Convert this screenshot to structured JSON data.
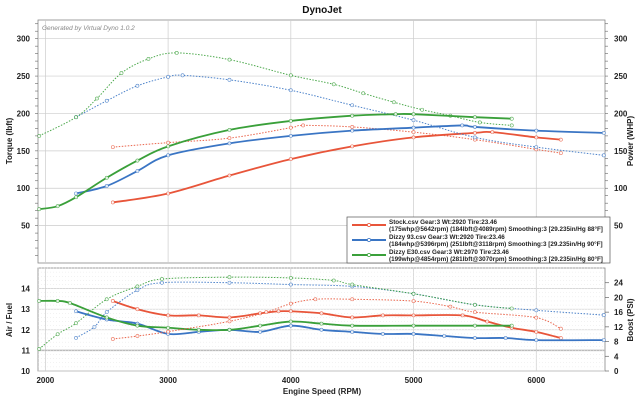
{
  "chart_data": [
    {
      "type": "line",
      "title": "DynoJet",
      "watermark": "Generated by Virtual Dyno 1.0.2",
      "ylabel": "Torque (lbft)",
      "ylabel_right": "Power (WHP)",
      "xlim": [
        1940,
        6560
      ],
      "ylim": [
        0,
        325
      ],
      "yticks": [
        50,
        100,
        150,
        200,
        250,
        300
      ],
      "grid": true,
      "legend": {
        "placement": "bottom-right",
        "entries": [
          {
            "line1": "Stock.csv Gear:3 Wt:2920 Tire:23.46",
            "line2": "(175whp@5642rpm) (184lbft@4089rpm) Smoothing:3 [29.235in/Hg 88°F]",
            "color": "#e8553a"
          },
          {
            "line1": "Dizzy 93.csv Gear:3 Wt:2920 Tire:23.46",
            "line2": "(184whp@5396rpm) (251lbft@3118rpm) Smoothing:3 [29.235in/Hg 90°F]",
            "color": "#3a75c4"
          },
          {
            "line1": "Dizzy E30.csv Gear:3 Wt:2970 Tire:23.46",
            "line2": "(199whp@4854rpm) (281lbft@3070rpm) Smoothing:3 [29.235in/Hg 80°F]",
            "color": "#3aa03a"
          }
        ]
      },
      "series": [
        {
          "file": "Stock",
          "measure": "torque",
          "style": "dotted",
          "color": "#e8553a",
          "x": [
            2550,
            3000,
            3500,
            4000,
            4100,
            4500,
            5000,
            5500,
            6000,
            6200
          ],
          "y": [
            155,
            161,
            167,
            181,
            184,
            182,
            175,
            165,
            152,
            147
          ]
        },
        {
          "file": "Stock",
          "measure": "power",
          "style": "solid",
          "color": "#e8553a",
          "x": [
            2550,
            3000,
            3500,
            4000,
            4500,
            5000,
            5500,
            5642,
            6000,
            6200
          ],
          "y": [
            81,
            93,
            117,
            139,
            156,
            168,
            174,
            175,
            168,
            165
          ]
        },
        {
          "file": "Dizzy 93",
          "measure": "torque",
          "style": "dotted",
          "color": "#3a75c4",
          "x": [
            2250,
            2500,
            2750,
            3000,
            3118,
            3500,
            4000,
            4500,
            5000,
            5500,
            6000,
            6550
          ],
          "y": [
            195,
            217,
            237,
            249,
            251,
            245,
            231,
            211,
            191,
            168,
            155,
            144
          ]
        },
        {
          "file": "Dizzy 93",
          "measure": "power",
          "style": "solid",
          "color": "#3a75c4",
          "x": [
            2250,
            2500,
            2750,
            3000,
            3500,
            4000,
            4500,
            5000,
            5396,
            5500,
            6000,
            6550
          ],
          "y": [
            93,
            103,
            123,
            144,
            160,
            170,
            177,
            181,
            184,
            182,
            177,
            174
          ]
        },
        {
          "file": "Dizzy E30",
          "measure": "torque",
          "style": "dotted",
          "color": "#3aa03a",
          "x": [
            1950,
            2250,
            2420,
            2620,
            2840,
            3070,
            3500,
            4000,
            4350,
            4590,
            4840,
            5070,
            5300,
            5540,
            5800
          ],
          "y": [
            170,
            195,
            220,
            254,
            273,
            281,
            272,
            251,
            239,
            227,
            215,
            205,
            197,
            188,
            184
          ]
        },
        {
          "file": "Dizzy E30",
          "measure": "power",
          "style": "solid",
          "color": "#3aa03a",
          "x": [
            1950,
            2100,
            2250,
            2500,
            2750,
            3000,
            3500,
            4000,
            4500,
            4854,
            5000,
            5500,
            5800
          ],
          "y": [
            72,
            76,
            88,
            114,
            137,
            156,
            178,
            190,
            197,
            199,
            199,
            195,
            193
          ]
        }
      ]
    },
    {
      "type": "line",
      "xlabel": "Engine Speed (RPM)",
      "ylabel": "Air / Fuel",
      "ylabel_right": "Boost (PSI)",
      "xlim": [
        1940,
        6560
      ],
      "xticks": [
        2000,
        3000,
        4000,
        5000,
        6000
      ],
      "ylim": [
        10,
        15
      ],
      "yticks": [
        10,
        11,
        12,
        13,
        14
      ],
      "ylim_right": [
        0,
        28
      ],
      "yticks_right": [
        0,
        4,
        8,
        12,
        16,
        20,
        24
      ],
      "grid": true,
      "series": [
        {
          "file": "Stock",
          "measure": "air_fuel",
          "style": "solid",
          "color": "#e8553a",
          "x": [
            2550,
            2750,
            3000,
            3250,
            3500,
            3750,
            3900,
            4000,
            4250,
            4500,
            4750,
            5000,
            5400,
            5600,
            5800,
            6000,
            6200
          ],
          "y": [
            13.4,
            13.0,
            12.7,
            12.7,
            12.6,
            12.8,
            12.9,
            12.9,
            12.8,
            12.6,
            12.7,
            12.7,
            12.7,
            12.4,
            12.1,
            11.9,
            11.6
          ]
        },
        {
          "file": "Dizzy 93",
          "measure": "air_fuel",
          "style": "solid",
          "color": "#3a75c4",
          "x": [
            2250,
            2500,
            2750,
            3000,
            3250,
            3500,
            3750,
            4000,
            4250,
            4500,
            4750,
            5000,
            5250,
            5500,
            5750,
            6000,
            6550
          ],
          "y": [
            12.9,
            12.5,
            12.3,
            11.8,
            11.9,
            12.0,
            11.9,
            12.2,
            12.0,
            11.9,
            11.8,
            11.8,
            11.7,
            11.6,
            11.6,
            11.5,
            11.5
          ]
        },
        {
          "file": "Dizzy E30",
          "measure": "air_fuel",
          "style": "solid",
          "color": "#3aa03a",
          "x": [
            1950,
            2100,
            2200,
            2500,
            2750,
            3000,
            3250,
            3500,
            3750,
            4000,
            4250,
            4500,
            5000,
            5500,
            5800
          ],
          "y": [
            13.4,
            13.4,
            13.3,
            12.6,
            12.2,
            12.1,
            12.0,
            12.0,
            12.2,
            12.4,
            12.3,
            12.2,
            12.2,
            12.2,
            12.2
          ]
        },
        {
          "file": "Stock",
          "measure": "boost",
          "style": "dotted",
          "color": "#e8553a",
          "x": [
            2550,
            2750,
            3000,
            3500,
            3800,
            4000,
            4200,
            4500,
            5000,
            5300,
            5500,
            6000,
            6200
          ],
          "y": [
            8.7,
            9.5,
            10.7,
            13.5,
            16,
            18.3,
            19.5,
            19.5,
            19,
            17.5,
            16,
            14.5,
            11.5
          ]
        },
        {
          "file": "Dizzy 93",
          "measure": "boost",
          "style": "dotted",
          "color": "#3a75c4",
          "x": [
            2250,
            2400,
            2500,
            2750,
            2950,
            3500,
            4000,
            4500,
            5000,
            5500,
            6000,
            6550
          ],
          "y": [
            9,
            12,
            16,
            22,
            24,
            24,
            23.5,
            23,
            21,
            18,
            16.5,
            15.2
          ]
        },
        {
          "file": "Dizzy E30",
          "measure": "boost",
          "style": "dotted",
          "color": "#3aa03a",
          "x": [
            1950,
            2100,
            2250,
            2500,
            2750,
            2950,
            3500,
            4000,
            4350,
            4500,
            5000,
            5500,
            5800
          ],
          "y": [
            6,
            10,
            13,
            19.5,
            23,
            25,
            25.5,
            25.3,
            24.6,
            23.5,
            21,
            18,
            17
          ]
        }
      ]
    }
  ]
}
